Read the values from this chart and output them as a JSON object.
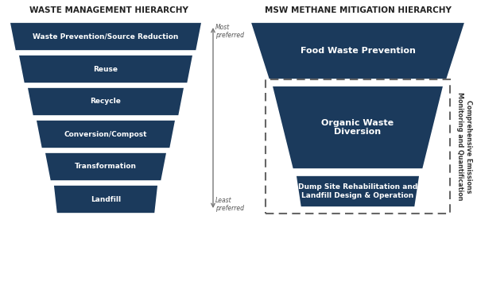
{
  "bg_color": "#ffffff",
  "dark_blue": "#1b3a5c",
  "left_title": "WASTE MANAGEMENT HIERARCHY",
  "right_title": "MSW METHANE MITIGATION HIERARCHY",
  "left_labels": [
    "Waste Prevention/Source Reduction",
    "Reuse",
    "Recycle",
    "Conversion/Compost",
    "Transformation",
    "Landfill"
  ],
  "right_label_1": "Food Waste Prevention",
  "right_label_2": "Organic Waste\nDiversion",
  "right_label_3": "Dump Site Rehabilitation and\nLandfill Design & Operation",
  "most_preferred": "Most\npreferred",
  "least_preferred": "Least\npreferred",
  "rotated_label": "Comprehensive Emissions\nMonitoring and Quantification",
  "text_color": "#ffffff",
  "title_color": "#222222",
  "arrow_color": "#777777",
  "dash_color": "#666666"
}
